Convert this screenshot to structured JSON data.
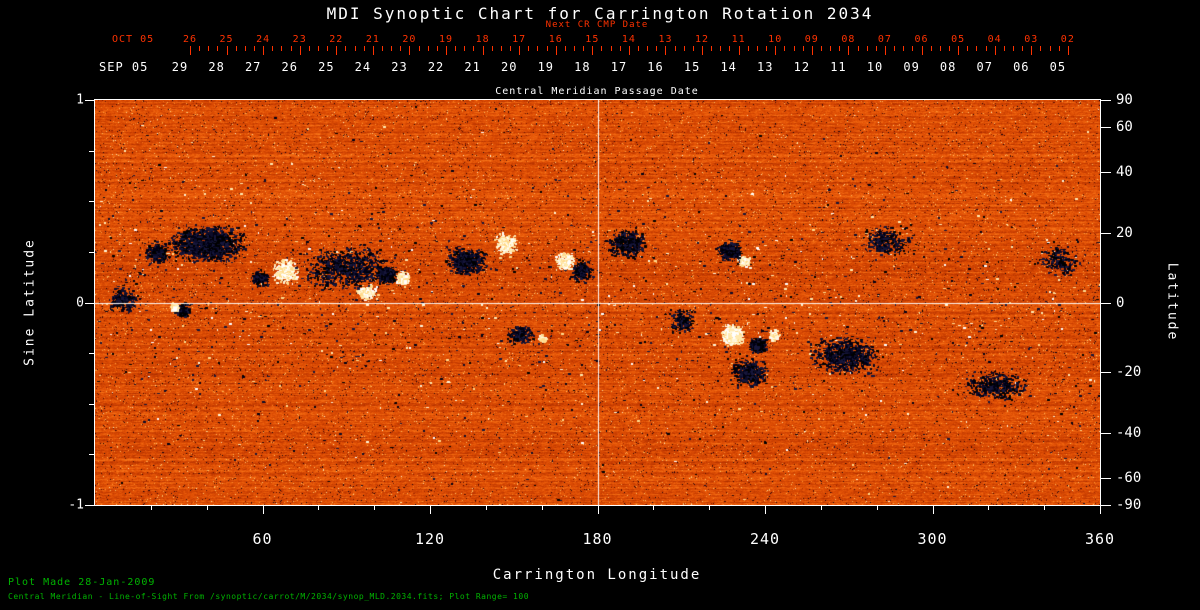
{
  "title": "MDI Synoptic Chart for Carrington Rotation 2034",
  "top_axis": {
    "next_cr_label": "Next CR CMP Date",
    "oct_label": "OCT 05",
    "oct_dates": [
      "26",
      "25",
      "24",
      "23",
      "22",
      "21",
      "20",
      "19",
      "18",
      "17",
      "16",
      "15",
      "14",
      "13",
      "12",
      "11",
      "10",
      "09",
      "08",
      "07",
      "06",
      "05",
      "04",
      "03",
      "02"
    ],
    "sep_label": "SEP 05",
    "sep_dates": [
      "29",
      "28",
      "27",
      "26",
      "25",
      "24",
      "23",
      "22",
      "21",
      "20",
      "19",
      "18",
      "17",
      "16",
      "15",
      "14",
      "13",
      "12",
      "11",
      "10",
      "09",
      "08",
      "07",
      "06",
      "05"
    ],
    "cmp_label": "Central Meridian Passage Date"
  },
  "left_axis": {
    "label": "Sine Latitude",
    "ticks": [
      "1",
      "0",
      "-1"
    ]
  },
  "right_axis": {
    "label": "Latitude",
    "ticks": [
      "90",
      "60",
      "40",
      "20",
      "0",
      "-20",
      "-40",
      "-60",
      "-90"
    ]
  },
  "bottom_axis": {
    "label": "Carrington Longitude",
    "ticks": [
      "60",
      "120",
      "180",
      "240",
      "300",
      "360"
    ]
  },
  "footer": {
    "line1": "Plot Made 28-Jan-2009",
    "line2": "Central Meridian - Line-of-Sight From  /synoptic/carrot/M/2034/synop_MLD.2034.fits; Plot Range= 100"
  },
  "colors": {
    "red": "#ff3200",
    "white": "#ffffff",
    "green": "#00b400",
    "background": "#000000"
  },
  "chart_data": {
    "type": "heatmap",
    "title": "MDI Synoptic Chart for Carrington Rotation 2034",
    "quantity": "line-of-sight magnetic field synoptic map",
    "plot_range": 100,
    "xlabel": "Carrington Longitude",
    "xlim": [
      0,
      360
    ],
    "x_ticks": [
      60,
      120,
      180,
      240,
      300,
      360
    ],
    "ylabel_left": "Sine Latitude",
    "ylim_sine": [
      -1,
      1
    ],
    "left_ticks_sine": [
      1,
      0,
      -1
    ],
    "ylabel_right": "Latitude",
    "right_ticks_deg": [
      90,
      60,
      40,
      20,
      0,
      -20,
      -40,
      -60,
      -90
    ],
    "top_axis_dates_oct": [
      "26",
      "25",
      "24",
      "23",
      "22",
      "21",
      "20",
      "19",
      "18",
      "17",
      "16",
      "15",
      "14",
      "13",
      "12",
      "11",
      "10",
      "09",
      "08",
      "07",
      "06",
      "05",
      "04",
      "03",
      "02"
    ],
    "top_axis_dates_sep": [
      "29",
      "28",
      "27",
      "26",
      "25",
      "24",
      "23",
      "22",
      "21",
      "20",
      "19",
      "18",
      "17",
      "16",
      "15",
      "14",
      "13",
      "12",
      "11",
      "10",
      "09",
      "08",
      "07",
      "06",
      "05"
    ],
    "crosshair": {
      "longitude": 180,
      "sine_latitude": 0
    },
    "palette": {
      "background_stops": [
        [
          0,
          "#0a0014"
        ],
        [
          0.12,
          "#3c0804"
        ],
        [
          0.25,
          "#821900"
        ],
        [
          0.4,
          "#be3700"
        ],
        [
          0.52,
          "#e15005"
        ],
        [
          0.62,
          "#f56e14"
        ],
        [
          0.75,
          "#ff9632"
        ],
        [
          0.88,
          "#ffc86e"
        ],
        [
          1,
          "#fff5dc"
        ]
      ],
      "negative_speckles": [
        "#000014",
        "#0c0c2a",
        "#16163a",
        "#000000"
      ],
      "positive_speckles": [
        "#ffffff",
        "#fff6d8",
        "#ffeab0",
        "#ffda8c"
      ]
    },
    "features": [
      {
        "lon": 40,
        "lat": 17,
        "pol": "neg",
        "dlon": 34,
        "dlat": 13,
        "density": 0.45
      },
      {
        "lon": 22,
        "lat": 14,
        "pol": "neg",
        "dlon": 10,
        "dlat": 8,
        "density": 0.4
      },
      {
        "lon": 31,
        "lat": -2,
        "pol": "neg",
        "dlon": 7,
        "dlat": 5,
        "density": 0.9
      },
      {
        "lon": 28,
        "lat": -1,
        "pol": "pos",
        "dlon": 3,
        "dlat": 3,
        "density": 1.2,
        "solid": true
      },
      {
        "lon": 68,
        "lat": 9,
        "pol": "pos",
        "dlon": 11,
        "dlat": 8,
        "density": 0.55
      },
      {
        "lon": 59,
        "lat": 7,
        "pol": "neg",
        "dlon": 8,
        "dlat": 6,
        "density": 0.4
      },
      {
        "lon": 90,
        "lat": 10,
        "pol": "neg",
        "dlon": 40,
        "dlat": 16,
        "density": 0.18
      },
      {
        "lon": 104,
        "lat": 8,
        "pol": "neg",
        "dlon": 8,
        "dlat": 6,
        "density": 1.0
      },
      {
        "lon": 110,
        "lat": 7,
        "pol": "pos",
        "dlon": 5,
        "dlat": 4,
        "density": 1.3,
        "solid": true
      },
      {
        "lon": 97,
        "lat": 3,
        "pol": "pos",
        "dlon": 10,
        "dlat": 5,
        "density": 0.35
      },
      {
        "lon": 133,
        "lat": 12,
        "pol": "neg",
        "dlon": 18,
        "dlat": 10,
        "density": 0.4
      },
      {
        "lon": 147,
        "lat": 17,
        "pol": "pos",
        "dlon": 9,
        "dlat": 7,
        "density": 0.55
      },
      {
        "lon": 168,
        "lat": 12,
        "pol": "pos",
        "dlon": 8,
        "dlat": 7,
        "density": 0.6
      },
      {
        "lon": 174,
        "lat": 9,
        "pol": "neg",
        "dlon": 10,
        "dlat": 8,
        "density": 0.4
      },
      {
        "lon": 152,
        "lat": -9,
        "pol": "neg",
        "dlon": 11,
        "dlat": 6,
        "density": 0.5
      },
      {
        "lon": 160,
        "lat": -10,
        "pol": "pos",
        "dlon": 4,
        "dlat": 3,
        "density": 0.6
      },
      {
        "lon": 190,
        "lat": 17,
        "pol": "neg",
        "dlon": 16,
        "dlat": 11,
        "density": 0.38
      },
      {
        "lon": 232,
        "lat": 12,
        "pol": "pos",
        "dlon": 5,
        "dlat": 4,
        "density": 0.9
      },
      {
        "lon": 227,
        "lat": 15,
        "pol": "neg",
        "dlon": 11,
        "dlat": 8,
        "density": 0.5
      },
      {
        "lon": 228,
        "lat": -9,
        "pol": "pos",
        "dlon": 9,
        "dlat": 7,
        "density": 1.3,
        "solid": true
      },
      {
        "lon": 237,
        "lat": -12,
        "pol": "neg",
        "dlon": 7,
        "dlat": 5,
        "density": 1.1,
        "solid": true
      },
      {
        "lon": 243,
        "lat": -9,
        "pol": "pos",
        "dlon": 5,
        "dlat": 4,
        "density": 0.5
      },
      {
        "lon": 234,
        "lat": -20,
        "pol": "neg",
        "dlon": 16,
        "dlat": 10,
        "density": 0.35
      },
      {
        "lon": 268,
        "lat": -15,
        "pol": "neg",
        "dlon": 30,
        "dlat": 13,
        "density": 0.28
      },
      {
        "lon": 322,
        "lat": -24,
        "pol": "neg",
        "dlon": 28,
        "dlat": 11,
        "density": 0.22
      },
      {
        "lon": 283,
        "lat": 18,
        "pol": "neg",
        "dlon": 22,
        "dlat": 11,
        "density": 0.18
      },
      {
        "lon": 10,
        "lat": 1,
        "pol": "neg",
        "dlon": 13,
        "dlat": 9,
        "density": 0.3
      },
      {
        "lon": 210,
        "lat": -5,
        "pol": "neg",
        "dlon": 12,
        "dlat": 8,
        "density": 0.25
      },
      {
        "lon": 345,
        "lat": 12,
        "pol": "neg",
        "dlon": 18,
        "dlat": 10,
        "density": 0.15
      }
    ]
  }
}
